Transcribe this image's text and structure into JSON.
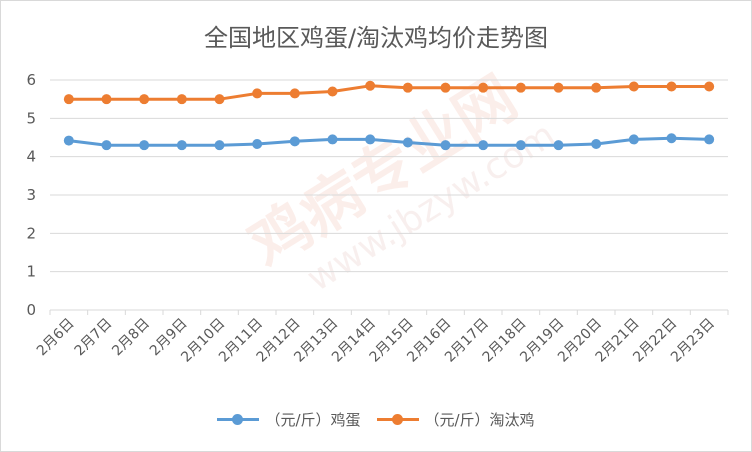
{
  "chart_data": {
    "type": "line",
    "title": "全国地区鸡蛋/淘汰鸡均价走势图",
    "xlabel": "",
    "ylabel": "",
    "categories": [
      "2月6日",
      "2月7日",
      "2月8日",
      "2月9日",
      "2月10日",
      "2月11日",
      "2月12日",
      "2月13日",
      "2月14日",
      "2月15日",
      "2月16日",
      "2月17日",
      "2月18日",
      "2月19日",
      "2月20日",
      "2月21日",
      "2月22日",
      "2月23日"
    ],
    "ylim": [
      0,
      6
    ],
    "yticks": [
      "0",
      "1",
      "2",
      "3",
      "4",
      "5",
      "6"
    ],
    "grid": "horizontal",
    "legend_position": "bottom",
    "series": [
      {
        "name": "（元/斤）鸡蛋",
        "color": "#5b9bd5",
        "values": [
          4.42,
          4.3,
          4.3,
          4.3,
          4.3,
          4.33,
          4.4,
          4.45,
          4.45,
          4.37,
          4.3,
          4.3,
          4.3,
          4.3,
          4.33,
          4.45,
          4.48,
          4.45
        ]
      },
      {
        "name": "（元/斤）淘汰鸡",
        "color": "#ed7d31",
        "values": [
          5.5,
          5.5,
          5.5,
          5.5,
          5.5,
          5.65,
          5.65,
          5.7,
          5.85,
          5.8,
          5.8,
          5.8,
          5.8,
          5.8,
          5.8,
          5.83,
          5.83,
          5.83
        ]
      }
    ]
  },
  "watermark": {
    "text": "鸡病专业网",
    "url": "www.jbzyw.com"
  }
}
